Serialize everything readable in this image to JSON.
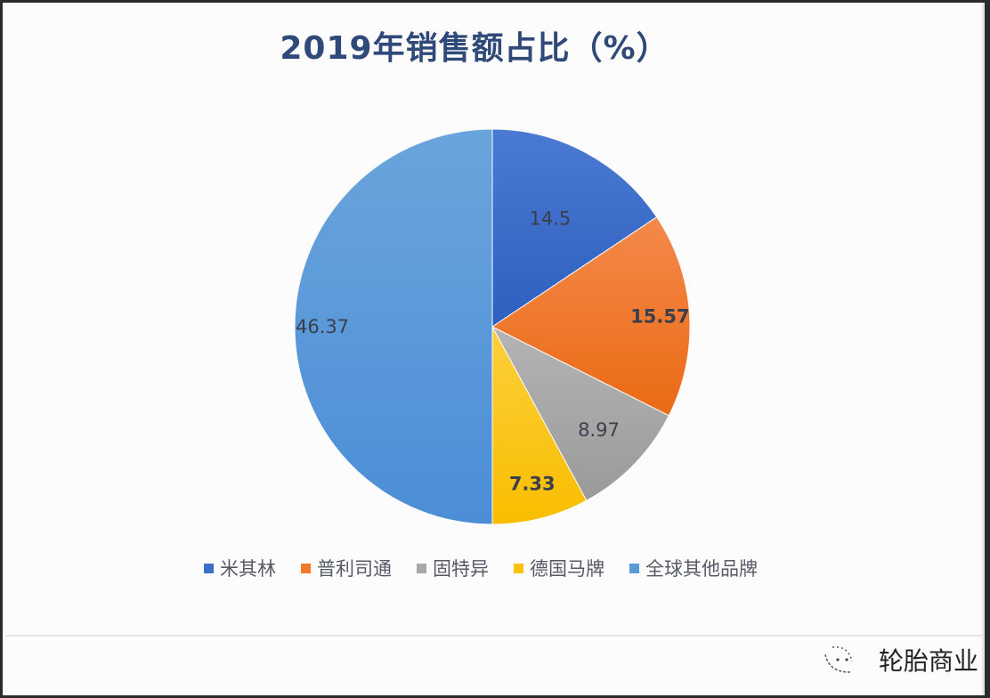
{
  "title": "2019年销售额占比（%）",
  "watermark": "轮胎商业",
  "legend": [
    {
      "label": "米其林",
      "color": "#3d6fca"
    },
    {
      "label": "普利司通",
      "color": "#f07a2a"
    },
    {
      "label": "固特异",
      "color": "#a8a8a8"
    },
    {
      "label": "德国马牌",
      "color": "#fcc20a"
    },
    {
      "label": "全球其他品牌",
      "color": "#5a9ad8"
    }
  ],
  "chart_data": {
    "type": "pie",
    "title": "2019年销售额占比（%）",
    "categories": [
      "米其林",
      "普利司通",
      "固特异",
      "德国马牌",
      "全球其他品牌"
    ],
    "values": [
      14.5,
      15.57,
      8.97,
      7.33,
      46.37
    ],
    "colors": [
      "#3d6fca",
      "#f07a2a",
      "#a8a8a8",
      "#fcc20a",
      "#5a9ad8"
    ],
    "start_angle": "12 o'clock, clockwise",
    "legend_position": "bottom",
    "data_labels": [
      "14.5",
      "15.57",
      "8.97",
      "7.33",
      "46.37"
    ]
  }
}
